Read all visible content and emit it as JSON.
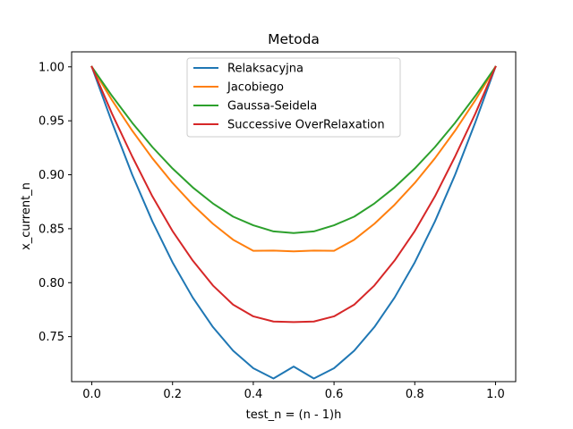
{
  "chart_data": {
    "type": "line",
    "title": "Metoda",
    "xlabel": "test_n = (n - 1)h",
    "ylabel": "x_current_n",
    "xlim": [
      -0.05,
      1.05
    ],
    "ylim": [
      0.7083,
      1.0139
    ],
    "xticks": [
      0.0,
      0.2,
      0.4,
      0.6,
      0.8,
      1.0
    ],
    "xtick_labels": [
      "0.0",
      "0.2",
      "0.4",
      "0.6",
      "0.8",
      "1.0"
    ],
    "yticks": [
      0.75,
      0.8,
      0.85,
      0.9,
      0.95,
      1.0
    ],
    "ytick_labels": [
      "0.75",
      "0.80",
      "0.85",
      "0.90",
      "0.95",
      "1.00"
    ],
    "grid": false,
    "legend_position": "upper center",
    "x": [
      0.0,
      0.05,
      0.1,
      0.15,
      0.2,
      0.25,
      0.3,
      0.35,
      0.4,
      0.45,
      0.5,
      0.55,
      0.6,
      0.65,
      0.7,
      0.75,
      0.8,
      0.85,
      0.9,
      0.95,
      1.0
    ],
    "series": [
      {
        "name": "Relaksacyjna",
        "color": "#1f77b4",
        "values": [
          1.0,
          0.9486,
          0.9001,
          0.8568,
          0.8188,
          0.7862,
          0.7589,
          0.737,
          0.7207,
          0.7112,
          0.7223,
          0.7112,
          0.7207,
          0.737,
          0.7589,
          0.7862,
          0.8188,
          0.8568,
          0.9001,
          0.9486,
          1.0
        ]
      },
      {
        "name": "Jacobiego",
        "color": "#ff7f0e",
        "values": [
          1.0,
          0.9691,
          0.9409,
          0.9153,
          0.8924,
          0.8722,
          0.8546,
          0.8398,
          0.8295,
          0.8297,
          0.829,
          0.8297,
          0.8295,
          0.8398,
          0.8546,
          0.8722,
          0.8924,
          0.9153,
          0.9409,
          0.9691,
          1.0
        ]
      },
      {
        "name": "Gaussa-Seidela",
        "color": "#2ca02c",
        "values": [
          1.0,
          0.9731,
          0.9482,
          0.9257,
          0.9058,
          0.8883,
          0.8734,
          0.8612,
          0.8532,
          0.8475,
          0.846,
          0.8475,
          0.8532,
          0.8612,
          0.8734,
          0.8883,
          0.9058,
          0.9257,
          0.9482,
          0.9731,
          1.0
        ]
      },
      {
        "name": "Successive OverRelaxation",
        "color": "#d62728",
        "values": [
          1.0,
          0.9566,
          0.917,
          0.88,
          0.8478,
          0.8205,
          0.7974,
          0.7796,
          0.7688,
          0.764,
          0.7635,
          0.764,
          0.7688,
          0.7796,
          0.7974,
          0.8205,
          0.8478,
          0.88,
          0.917,
          0.9566,
          1.0
        ]
      }
    ]
  }
}
